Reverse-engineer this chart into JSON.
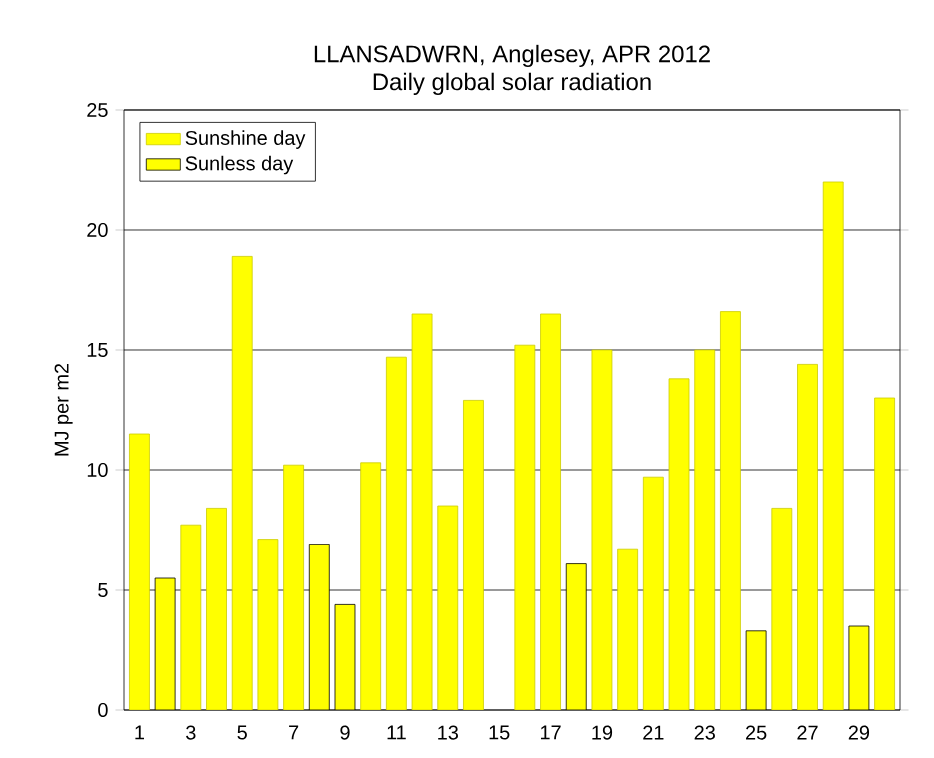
{
  "chart_data": {
    "type": "bar",
    "title": "LLANSADWRN, Anglesey, APR 2012",
    "subtitle": "Daily global solar radiation",
    "ylabel": "MJ per m2",
    "categories": [
      "1",
      null,
      "3",
      null,
      "5",
      null,
      "7",
      null,
      "9",
      null,
      "11",
      null,
      "13",
      null,
      "15",
      null,
      "17",
      null,
      "19",
      null,
      "21",
      null,
      "23",
      null,
      "25",
      null,
      "27",
      null,
      "29",
      null
    ],
    "series": [
      {
        "name": "Sunshine day",
        "color": "#ffff00",
        "values": [
          11.5,
          null,
          7.7,
          8.4,
          18.9,
          7.1,
          10.2,
          null,
          null,
          10.3,
          14.7,
          16.5,
          8.5,
          12.9,
          null,
          15.2,
          16.5,
          null,
          15.0,
          6.7,
          9.7,
          13.8,
          15.0,
          16.6,
          null,
          8.4,
          14.4,
          22.0,
          null,
          13.0
        ]
      },
      {
        "name": "Sunless day",
        "color": "#ffff00",
        "values": [
          null,
          5.5,
          null,
          null,
          null,
          null,
          null,
          6.9,
          4.4,
          null,
          null,
          null,
          null,
          null,
          null,
          null,
          null,
          6.1,
          null,
          null,
          null,
          null,
          null,
          null,
          3.3,
          null,
          null,
          null,
          3.5,
          null
        ]
      }
    ],
    "ylim": [
      0,
      25
    ],
    "yticks": [
      0,
      5,
      10,
      15,
      20,
      25
    ],
    "grid": "y",
    "legend": "top left"
  }
}
